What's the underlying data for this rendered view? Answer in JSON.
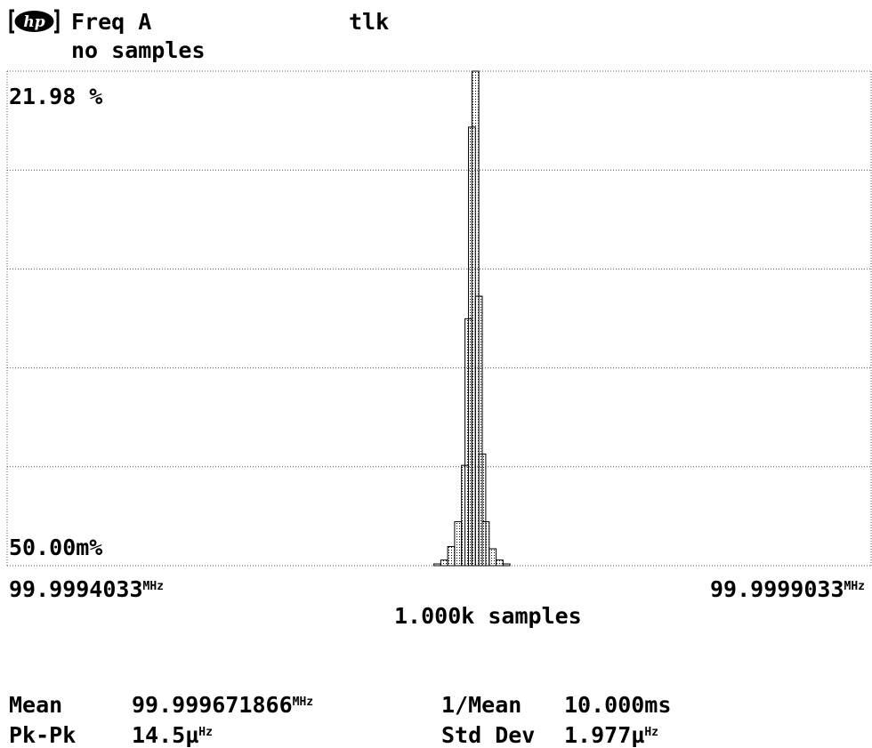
{
  "header": {
    "logo_text": "hp",
    "measurement": "Freq A",
    "status": "tlk",
    "sample_status": "no samples"
  },
  "chart_data": {
    "type": "bar",
    "y_top_label": "21.98 %",
    "y_bottom_label": "50.00m%",
    "ylim": [
      0.05,
      21.98
    ],
    "x_left_label": "99.9994033",
    "x_right_label": "99.9999033",
    "x_unit_mhz": "MHz",
    "xlim": [
      99.9994033,
      99.9999033
    ],
    "xlabel": "1.000k samples",
    "grid": true,
    "bins": [
      {
        "x": 99.999652,
        "value": 0.1
      },
      {
        "x": 99.999656,
        "value": 0.3
      },
      {
        "x": 99.99966,
        "value": 0.9
      },
      {
        "x": 99.999664,
        "value": 2.0
      },
      {
        "x": 99.999668,
        "value": 4.5
      },
      {
        "x": 99.99967,
        "value": 11.0
      },
      {
        "x": 99.999672,
        "value": 19.5
      },
      {
        "x": 99.999674,
        "value": 21.98
      },
      {
        "x": 99.999676,
        "value": 12.0
      },
      {
        "x": 99.999678,
        "value": 5.0
      },
      {
        "x": 99.99968,
        "value": 2.0
      },
      {
        "x": 99.999684,
        "value": 0.8
      },
      {
        "x": 99.999688,
        "value": 0.3
      },
      {
        "x": 99.999692,
        "value": 0.1
      }
    ]
  },
  "stats": {
    "mean_label": "Mean",
    "mean_value": "99.999671866",
    "mean_unit": "MHz",
    "inv_mean_label": "1/Mean",
    "inv_mean_value": "10.000ms",
    "pkpk_label": "Pk-Pk",
    "pkpk_value": "14.5µ",
    "pkpk_unit": "Hz",
    "stddev_label": "Std Dev",
    "stddev_value": "1.977µ",
    "stddev_unit": "Hz"
  }
}
